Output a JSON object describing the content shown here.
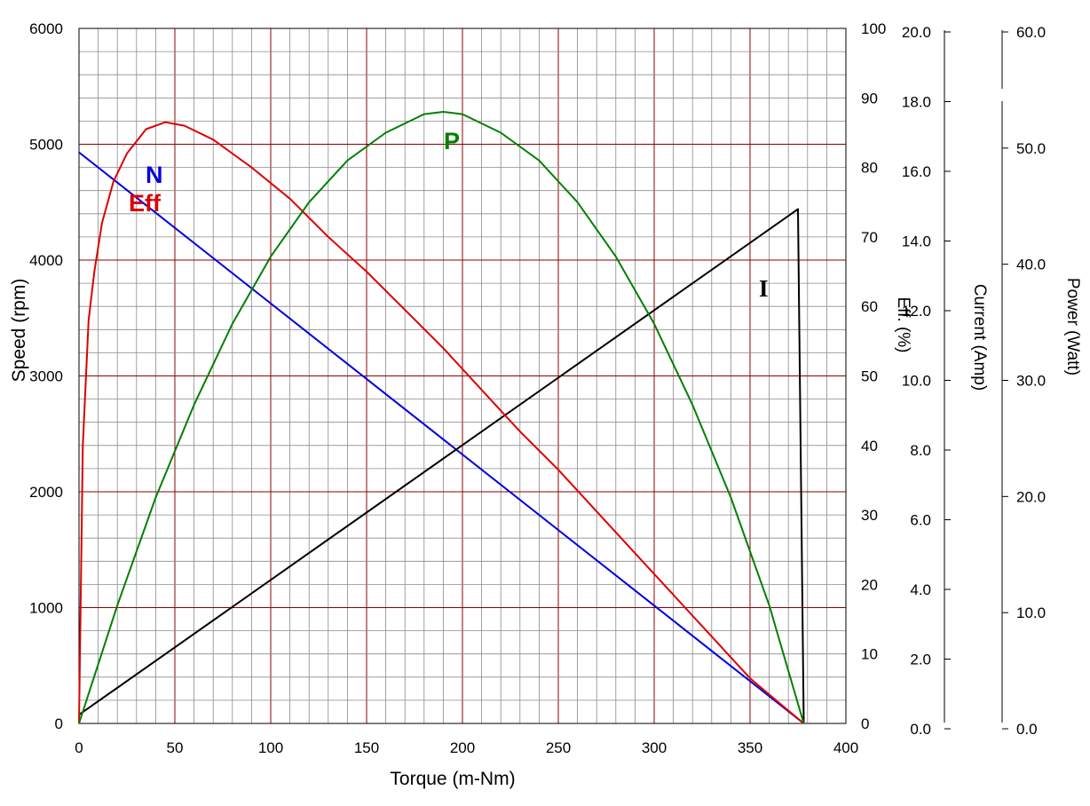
{
  "chart_data": {
    "type": "line",
    "title": "",
    "xlabel": "Torque (m-Nm)",
    "xlim": [
      0,
      400
    ],
    "x_ticks": [
      "0",
      "50",
      "100",
      "150",
      "200",
      "250",
      "300",
      "350",
      "400"
    ],
    "grid": true,
    "legend": "none",
    "axes": {
      "speed": {
        "label": "Speed (rpm)",
        "ylim": [
          0,
          6000
        ],
        "side": "left",
        "ticks": [
          "0",
          "1000",
          "2000",
          "3000",
          "4000",
          "5000",
          "6000"
        ]
      },
      "efficiency": {
        "label": "Eff. (%)",
        "ylim": [
          0,
          100
        ],
        "side": "right",
        "ticks": [
          "0",
          "10",
          "20",
          "30",
          "40",
          "50",
          "60",
          "70",
          "80",
          "90",
          "100"
        ]
      },
      "current": {
        "label": "Current (Amp)",
        "ylim": [
          0,
          20
        ],
        "side": "right",
        "ticks": [
          "0.0",
          "2.0",
          "4.0",
          "6.0",
          "8.0",
          "10.0",
          "12.0",
          "14.0",
          "16.0",
          "18.0",
          "20.0"
        ]
      },
      "power": {
        "label": "Power (Watt)",
        "ylim": [
          0,
          60
        ],
        "side": "right",
        "ticks": [
          "0.0",
          "10.0",
          "20.0",
          "30.0",
          "40.0",
          "50.0",
          "60.0"
        ]
      }
    },
    "series": [
      {
        "name": "N",
        "axis": "speed",
        "color": "#0000dd",
        "x": [
          0,
          378
        ],
        "y": [
          4930,
          0
        ]
      },
      {
        "name": "I",
        "axis": "current",
        "color": "#000000",
        "x": [
          0,
          375,
          378
        ],
        "y": [
          0.25,
          14.8,
          0
        ]
      },
      {
        "name": "Eff",
        "axis": "efficiency",
        "color": "#dd0000",
        "x": [
          0,
          2,
          5,
          8,
          12,
          18,
          25,
          35,
          45,
          55,
          70,
          90,
          110,
          130,
          150,
          170,
          190,
          210,
          230,
          250,
          270,
          290,
          310,
          330,
          350,
          365,
          378
        ],
        "y": [
          0,
          40,
          58,
          65,
          72,
          78,
          82,
          85.5,
          86.5,
          86,
          84,
          80,
          75.5,
          70,
          65,
          59.5,
          54,
          48,
          42,
          36.5,
          30.5,
          24.5,
          18.5,
          12.5,
          6.5,
          3,
          0
        ]
      },
      {
        "name": "P",
        "axis": "power",
        "color": "#008000",
        "x": [
          0,
          20,
          40,
          60,
          80,
          100,
          120,
          140,
          160,
          180,
          190,
          200,
          220,
          240,
          260,
          280,
          300,
          320,
          340,
          360,
          378
        ],
        "y": [
          0,
          10.2,
          19.5,
          27.5,
          34.5,
          40.3,
          45,
          48.6,
          51,
          52.6,
          52.8,
          52.6,
          51,
          48.6,
          45,
          40.3,
          34.5,
          27.5,
          19.5,
          10.2,
          0
        ]
      }
    ]
  }
}
